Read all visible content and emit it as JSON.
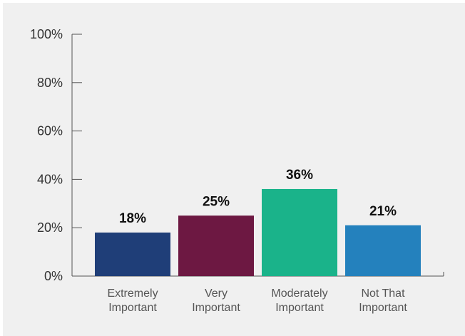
{
  "chart_data": {
    "type": "bar",
    "categories": [
      [
        "Extremely",
        "Important"
      ],
      [
        "Very",
        "Important"
      ],
      [
        "Moderately",
        "Important"
      ],
      [
        "Not That",
        "Important"
      ]
    ],
    "values": [
      18,
      25,
      36,
      21
    ],
    "data_labels": [
      "18%",
      "25%",
      "36%",
      "21%"
    ],
    "colors": [
      "#1f3e78",
      "#6d1842",
      "#1ab38a",
      "#2481bd"
    ],
    "ylim": [
      0,
      100
    ],
    "yticks": [
      0,
      20,
      40,
      60,
      80,
      100
    ],
    "ytick_labels": [
      "0%",
      "20%",
      "40%",
      "60%",
      "80%",
      "100%"
    ],
    "grid": false,
    "title": "",
    "xlabel": "",
    "ylabel": ""
  }
}
